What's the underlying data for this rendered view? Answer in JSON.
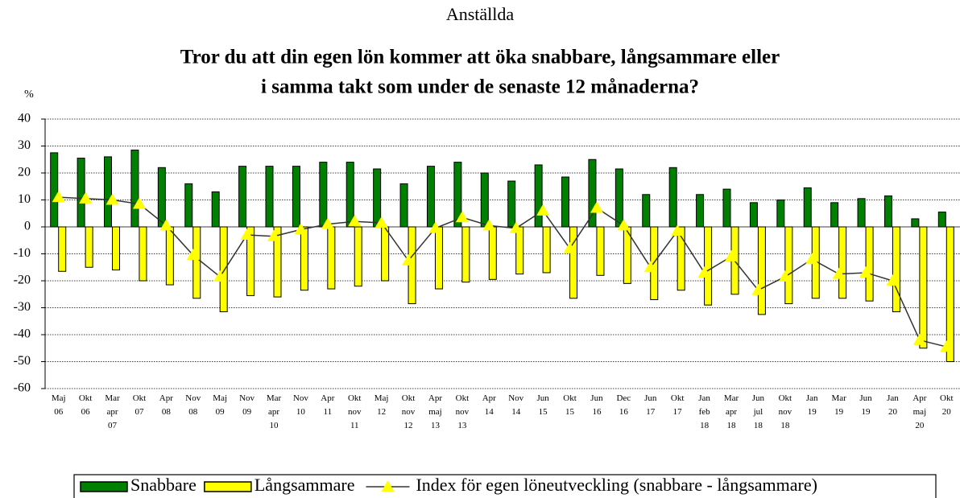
{
  "chart_data": {
    "type": "bar",
    "title": "Anställda",
    "subtitle": [
      "Tror du att din egen lön kommer att öka snabbare, långsammare eller",
      "i samma takt som under de senaste 12 månaderna?"
    ],
    "y_label": "%",
    "categories": [
      "Maj 06",
      "Okt 06",
      "Mar apr 07",
      "Okt 07",
      "Apr 08",
      "Nov 08",
      "Maj 09",
      "Nov 09",
      "Mar apr 10",
      "Nov 10",
      "Apr 11",
      "Okt nov 11",
      "Maj 12",
      "Okt nov 12",
      "Apr maj 13",
      "Okt nov 13",
      "Apr 14",
      "Nov 14",
      "Jun 15",
      "Okt 15",
      "Jun 16",
      "Dec 16",
      "Jun 17",
      "Okt 17",
      "Jan feb 18",
      "Mar apr 18",
      "Jun jul 18",
      "Okt nov 18",
      "Jan 19",
      "Mar 19",
      "Jun 19",
      "Jan 20",
      "Apr maj 20",
      "Okt 20"
    ],
    "series": [
      {
        "name": "Snabbare",
        "color": "#008000",
        "kind": "bar",
        "values": [
          27.5,
          25.5,
          26,
          28.5,
          22,
          16,
          13,
          22.5,
          22.5,
          22.5,
          24,
          24,
          21.5,
          16,
          22.5,
          24,
          20,
          17,
          23,
          18.5,
          25,
          21.5,
          12,
          22,
          12,
          14,
          9,
          10,
          14.5,
          9,
          10.5,
          11.5,
          3,
          5.5
        ]
      },
      {
        "name": "Långsammare",
        "color": "#ffff00",
        "kind": "bar",
        "values": [
          -16.5,
          -15,
          -16,
          -20,
          -21.5,
          -26.5,
          -31.5,
          -25.5,
          -26,
          -23.5,
          -23,
          -22,
          -20,
          -28.5,
          -23,
          -20.5,
          -19.5,
          -17.5,
          -17,
          -26.5,
          -18,
          -21,
          -27,
          -23.5,
          -29,
          -25,
          -32.5,
          -28.5,
          -26.5,
          -26.5,
          -27.5,
          -31.5,
          -45,
          -50
        ]
      },
      {
        "name": "Index för egen löneutveckling (snabbare - långsammare)",
        "color": "#333333",
        "marker_color": "#ffff00",
        "kind": "line",
        "values": [
          11,
          10.5,
          10,
          8.5,
          0.5,
          -10.5,
          -18.5,
          -3,
          -3.5,
          -1,
          1,
          2,
          1.5,
          -12.5,
          -0.5,
          3.5,
          0.5,
          -0.5,
          6,
          -8,
          7,
          0.5,
          -15,
          -1.5,
          -17,
          -11,
          -23.5,
          -18.5,
          -12,
          -17.5,
          -17,
          -20,
          -42,
          -44.5
        ]
      }
    ],
    "ylim": [
      -60,
      40
    ],
    "yticks": [
      -60,
      -50,
      -40,
      -30,
      -20,
      -10,
      0,
      10,
      20,
      30,
      40
    ],
    "grid": true
  }
}
